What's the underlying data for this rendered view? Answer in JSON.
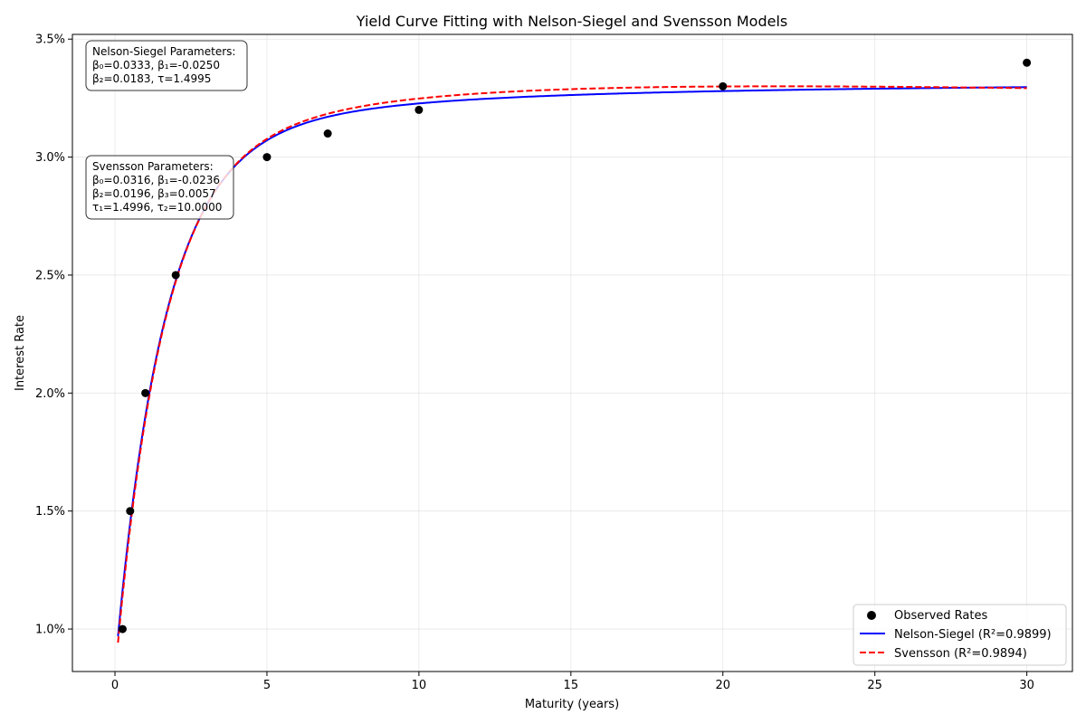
{
  "chart_data": {
    "type": "line",
    "title": "Yield Curve Fitting with Nelson-Siegel and Svensson Models",
    "xlabel": "Maturity (years)",
    "ylabel": "Interest Rate",
    "xlim": [
      -1.4,
      31.5
    ],
    "ylim": [
      0.0082,
      0.0352
    ],
    "x_ticks": [
      0,
      5,
      10,
      15,
      20,
      25,
      30
    ],
    "x_tick_labels": [
      "0",
      "5",
      "10",
      "15",
      "20",
      "25",
      "30"
    ],
    "y_ticks": [
      0.01,
      0.015,
      0.02,
      0.025,
      0.03,
      0.035
    ],
    "y_tick_labels": [
      "1.0%",
      "1.5%",
      "2.0%",
      "2.5%",
      "3.0%",
      "3.5%"
    ],
    "grid": true,
    "legend_position": "bottom-right",
    "observed": {
      "name": "Observed Rates",
      "color": "#000000",
      "x": [
        0.25,
        0.5,
        1,
        2,
        5,
        7,
        10,
        20,
        30
      ],
      "y": [
        0.01,
        0.015,
        0.02,
        0.025,
        0.03,
        0.031,
        0.032,
        0.033,
        0.034
      ]
    },
    "series": [
      {
        "name": "Nelson-Siegel (R²=0.9899)",
        "model": "nelson-siegel",
        "color": "#0000ff",
        "line_style": "solid",
        "params": {
          "beta0": 0.0333,
          "beta1": -0.025,
          "beta2": 0.0183,
          "tau": 1.4995
        },
        "x_range": [
          0.1,
          30
        ]
      },
      {
        "name": "Svensson (R²=0.9894)",
        "model": "svensson",
        "color": "#ff0000",
        "line_style": "dashed",
        "params": {
          "beta0": 0.0316,
          "beta1": -0.0236,
          "beta2": 0.0196,
          "beta3": 0.0057,
          "tau1": 1.4996,
          "tau2": 10.0
        },
        "x_range": [
          0.1,
          30
        ]
      }
    ],
    "annotations": [
      {
        "position": "top-left",
        "lines": [
          "Nelson-Siegel Parameters:",
          "β₀=0.0333, β₁=-0.0250",
          "β₂=0.0183, τ=1.4995"
        ]
      },
      {
        "position": "upper-left",
        "lines": [
          "Svensson Parameters:",
          "β₀=0.0316, β₁=-0.0236",
          "β₂=0.0196, β₃=0.0057",
          "τ₁=1.4996, τ₂=10.0000"
        ]
      }
    ]
  }
}
